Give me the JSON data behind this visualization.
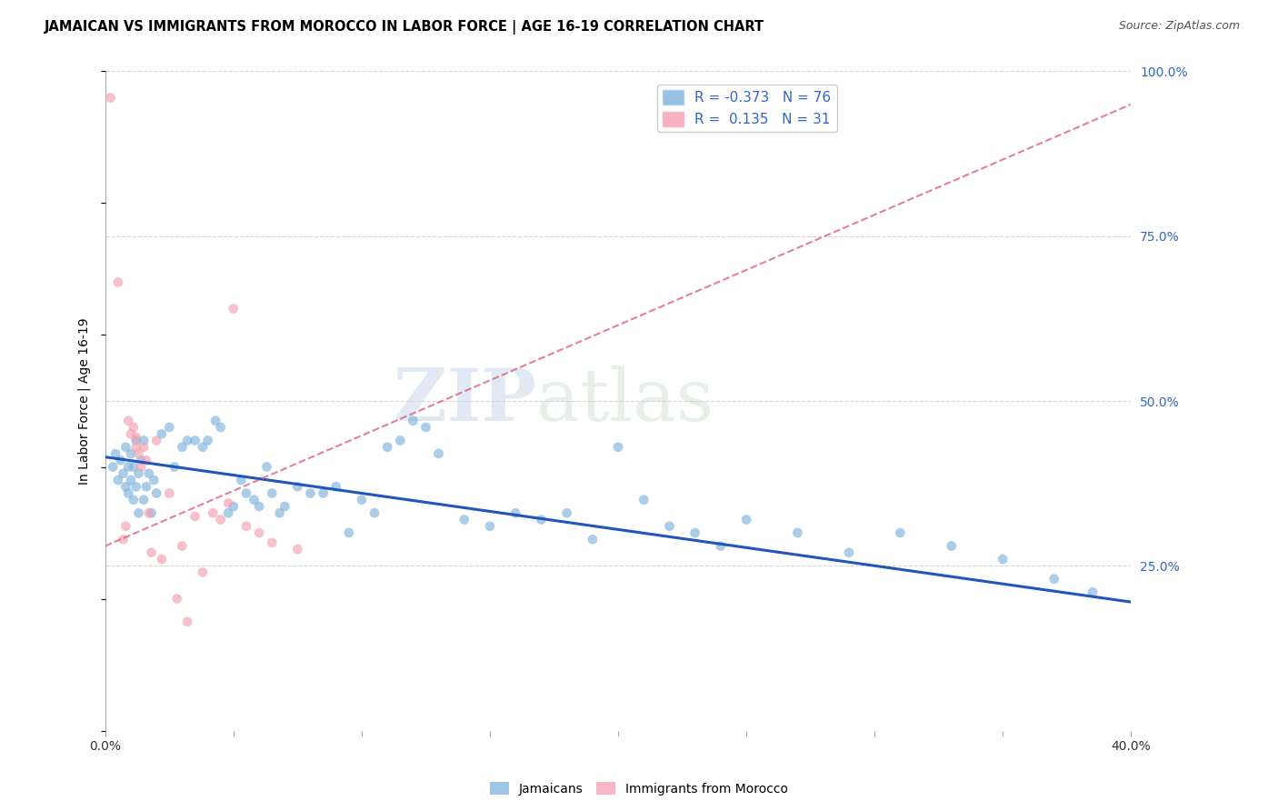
{
  "title": "JAMAICAN VS IMMIGRANTS FROM MOROCCO IN LABOR FORCE | AGE 16-19 CORRELATION CHART",
  "source": "Source: ZipAtlas.com",
  "ylabel": "In Labor Force | Age 16-19",
  "xlim": [
    0.0,
    0.4
  ],
  "ylim": [
    0.0,
    1.0
  ],
  "x_ticks": [
    0.0,
    0.05,
    0.1,
    0.15,
    0.2,
    0.25,
    0.3,
    0.35,
    0.4
  ],
  "x_tick_labels": [
    "0.0%",
    "",
    "",
    "",
    "",
    "",
    "",
    "",
    "40.0%"
  ],
  "y_ticks": [
    0.0,
    0.25,
    0.5,
    0.75,
    1.0
  ],
  "y_tick_labels": [
    "",
    "25.0%",
    "50.0%",
    "75.0%",
    "100.0%"
  ],
  "blue_color": "#7EB2DD",
  "pink_color": "#F4A0B0",
  "blue_line_color": "#2255BB",
  "pink_line_color": "#DD5577",
  "legend_blue_r": "-0.373",
  "legend_blue_n": "76",
  "legend_pink_r": "0.135",
  "legend_pink_n": "31",
  "watermark_zip": "ZIP",
  "watermark_atlas": "atlas",
  "blue_x": [
    0.003,
    0.004,
    0.005,
    0.006,
    0.007,
    0.008,
    0.008,
    0.009,
    0.009,
    0.01,
    0.01,
    0.011,
    0.011,
    0.012,
    0.012,
    0.013,
    0.013,
    0.014,
    0.015,
    0.015,
    0.016,
    0.017,
    0.018,
    0.019,
    0.02,
    0.022,
    0.025,
    0.027,
    0.03,
    0.032,
    0.035,
    0.038,
    0.04,
    0.043,
    0.045,
    0.048,
    0.05,
    0.053,
    0.055,
    0.058,
    0.06,
    0.063,
    0.065,
    0.068,
    0.07,
    0.075,
    0.08,
    0.085,
    0.09,
    0.095,
    0.1,
    0.105,
    0.11,
    0.115,
    0.12,
    0.125,
    0.13,
    0.14,
    0.15,
    0.16,
    0.17,
    0.18,
    0.19,
    0.2,
    0.21,
    0.22,
    0.23,
    0.24,
    0.25,
    0.27,
    0.29,
    0.31,
    0.33,
    0.35,
    0.37,
    0.385
  ],
  "blue_y": [
    0.4,
    0.42,
    0.38,
    0.41,
    0.39,
    0.43,
    0.37,
    0.4,
    0.36,
    0.42,
    0.38,
    0.4,
    0.35,
    0.44,
    0.37,
    0.39,
    0.33,
    0.41,
    0.35,
    0.44,
    0.37,
    0.39,
    0.33,
    0.38,
    0.36,
    0.45,
    0.46,
    0.4,
    0.43,
    0.44,
    0.44,
    0.43,
    0.44,
    0.47,
    0.46,
    0.33,
    0.34,
    0.38,
    0.36,
    0.35,
    0.34,
    0.4,
    0.36,
    0.33,
    0.34,
    0.37,
    0.36,
    0.36,
    0.37,
    0.3,
    0.35,
    0.33,
    0.43,
    0.44,
    0.47,
    0.46,
    0.42,
    0.32,
    0.31,
    0.33,
    0.32,
    0.33,
    0.29,
    0.43,
    0.35,
    0.31,
    0.3,
    0.28,
    0.32,
    0.3,
    0.27,
    0.3,
    0.28,
    0.26,
    0.23,
    0.21
  ],
  "pink_x": [
    0.002,
    0.005,
    0.007,
    0.008,
    0.009,
    0.01,
    0.011,
    0.012,
    0.012,
    0.013,
    0.014,
    0.015,
    0.016,
    0.017,
    0.018,
    0.02,
    0.022,
    0.025,
    0.028,
    0.03,
    0.032,
    0.035,
    0.038,
    0.042,
    0.045,
    0.048,
    0.05,
    0.055,
    0.06,
    0.065,
    0.075
  ],
  "pink_y": [
    0.96,
    0.68,
    0.29,
    0.31,
    0.47,
    0.45,
    0.46,
    0.445,
    0.43,
    0.42,
    0.4,
    0.43,
    0.41,
    0.33,
    0.27,
    0.44,
    0.26,
    0.36,
    0.2,
    0.28,
    0.165,
    0.325,
    0.24,
    0.33,
    0.32,
    0.345,
    0.64,
    0.31,
    0.3,
    0.285,
    0.275
  ],
  "point_size": 60
}
